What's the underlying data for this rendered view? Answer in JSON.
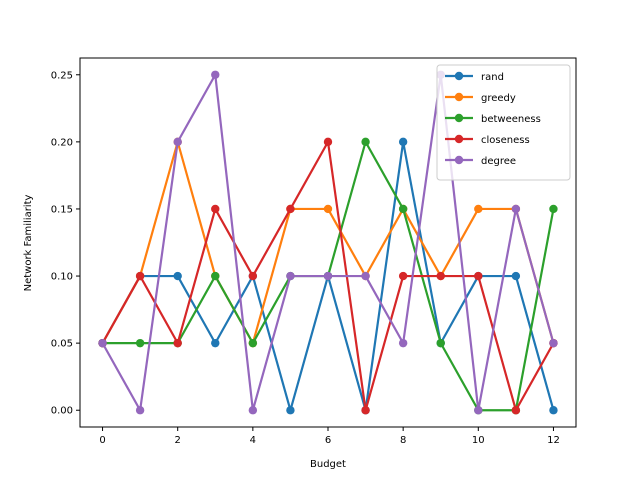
{
  "chart_data": {
    "type": "line",
    "title": "",
    "xlabel": "Budget",
    "ylabel": "Network Familiarity",
    "xlim": [
      -0.6,
      12.6
    ],
    "ylim": [
      -0.0125,
      0.2625
    ],
    "xticks": [
      0,
      2,
      4,
      6,
      8,
      10,
      12
    ],
    "yticks": [
      0.0,
      0.05,
      0.1,
      0.15,
      0.2,
      0.25
    ],
    "ytick_labels": [
      "0.00",
      "0.05",
      "0.10",
      "0.15",
      "0.20",
      "0.25"
    ],
    "grid": false,
    "legend_position": "upper right",
    "x": [
      0,
      1,
      2,
      3,
      4,
      5,
      6,
      7,
      8,
      9,
      10,
      11,
      12
    ],
    "series": [
      {
        "name": "rand",
        "color": "#1f77b4",
        "values": [
          0.05,
          0.1,
          0.1,
          0.05,
          0.1,
          0.0,
          0.1,
          0.0,
          0.2,
          0.05,
          0.1,
          0.1,
          0.0
        ]
      },
      {
        "name": "greedy",
        "color": "#ff7f0e",
        "values": [
          0.05,
          0.1,
          0.2,
          0.1,
          0.05,
          0.15,
          0.15,
          0.1,
          0.15,
          0.1,
          0.15,
          0.15,
          0.05
        ]
      },
      {
        "name": "betweeness",
        "color": "#2ca02c",
        "values": [
          0.05,
          0.05,
          0.05,
          0.1,
          0.05,
          0.1,
          0.1,
          0.2,
          0.15,
          0.05,
          0.0,
          0.0,
          0.15
        ]
      },
      {
        "name": "closeness",
        "color": "#d62728",
        "values": [
          0.05,
          0.1,
          0.05,
          0.15,
          0.1,
          0.15,
          0.2,
          0.0,
          0.1,
          0.1,
          0.1,
          0.0,
          0.05
        ]
      },
      {
        "name": "degree",
        "color": "#9467bd",
        "values": [
          0.05,
          0.0,
          0.2,
          0.25,
          0.0,
          0.1,
          0.1,
          0.1,
          0.05,
          0.25,
          0.0,
          0.15,
          0.05
        ]
      }
    ]
  }
}
